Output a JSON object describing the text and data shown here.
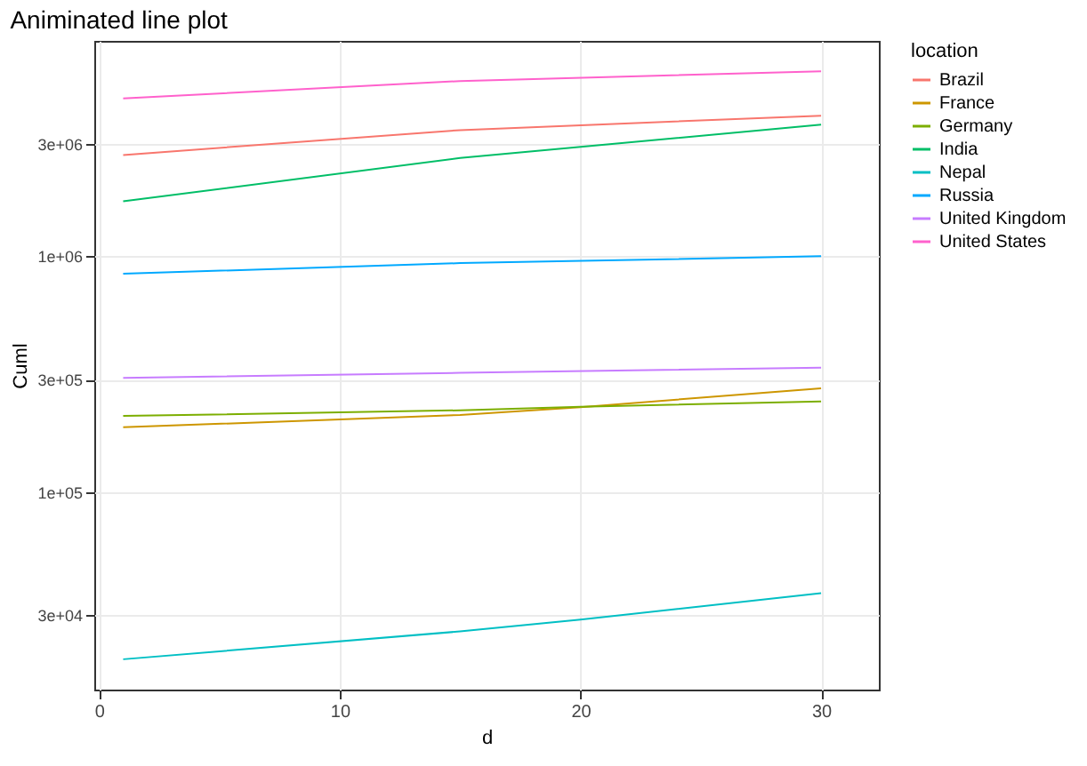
{
  "chart_data": {
    "type": "line",
    "title": "Animinated line plot",
    "xlabel": "d",
    "ylabel": "Cuml",
    "legend_title": "location",
    "log": true,
    "grid": true,
    "legend": "right",
    "xlim": [
      -0.2,
      32.4
    ],
    "xticks": [
      0,
      10,
      20,
      30
    ],
    "ylim": [
      14500,
      8200000
    ],
    "yticks": [
      {
        "value": 30000,
        "label": "3e+04"
      },
      {
        "value": 100000,
        "label": "1e+05"
      },
      {
        "value": 300000,
        "label": "3e+05"
      },
      {
        "value": 1000000,
        "label": "1e+06"
      },
      {
        "value": 3000000,
        "label": "3e+06"
      }
    ],
    "series": [
      {
        "name": "Brazil",
        "color": "#f8766d",
        "x": [
          1,
          15,
          30
        ],
        "values": [
          2690000,
          3430000,
          3950000
        ]
      },
      {
        "name": "France",
        "color": "#cd9600",
        "x": [
          1,
          15,
          20,
          30
        ],
        "values": [
          188000,
          212000,
          229000,
          275000
        ]
      },
      {
        "name": "Germany",
        "color": "#7cae00",
        "x": [
          1,
          15,
          20,
          30
        ],
        "values": [
          210000,
          222000,
          230000,
          242000
        ]
      },
      {
        "name": "India",
        "color": "#00be67",
        "x": [
          1,
          15,
          30
        ],
        "values": [
          1710000,
          2610000,
          3620000
        ]
      },
      {
        "name": "Nepal",
        "color": "#00bfc4",
        "x": [
          1,
          15,
          20,
          30
        ],
        "values": [
          19500,
          25600,
          28700,
          37200
        ]
      },
      {
        "name": "Russia",
        "color": "#00a9ff",
        "x": [
          1,
          15,
          30
        ],
        "values": [
          843000,
          935000,
          1000000
        ]
      },
      {
        "name": "United Kingdom",
        "color": "#c77cff",
        "x": [
          1,
          15,
          30
        ],
        "values": [
          305000,
          320000,
          337000
        ]
      },
      {
        "name": "United States",
        "color": "#ff61cc",
        "x": [
          1,
          15,
          30
        ],
        "values": [
          4670000,
          5540000,
          6090000
        ]
      }
    ]
  }
}
